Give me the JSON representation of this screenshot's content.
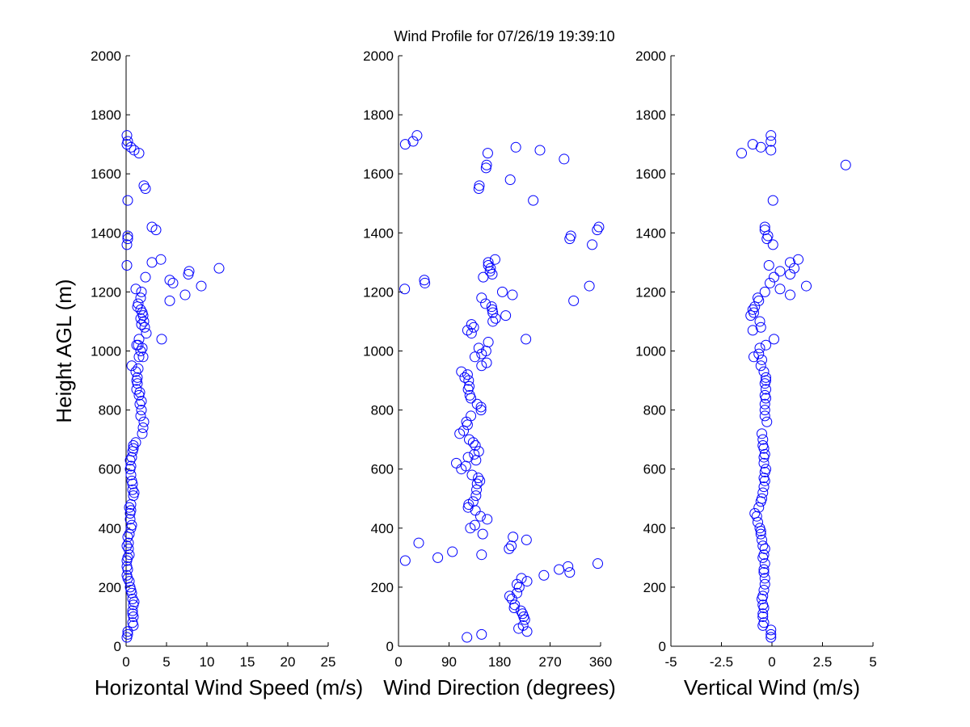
{
  "title": "Wind Profile for  07/26/19 19:39:10",
  "marker_color": "#0000ff",
  "chart_data": [
    {
      "type": "scatter",
      "xlabel": "Horizontal Wind Speed (m/s)",
      "ylabel": "Height AGL (m)",
      "xlim": [
        0,
        25
      ],
      "ylim": [
        0,
        2000
      ],
      "xticks": [
        0,
        5,
        10,
        15,
        20,
        25
      ],
      "xtick_labels": [
        "0",
        "5",
        "10",
        "15",
        "20",
        "25"
      ],
      "yticks": [
        0,
        200,
        400,
        600,
        800,
        1000,
        1200,
        1400,
        1600,
        1800,
        2000
      ],
      "ytick_labels": [
        "0",
        "200",
        "400",
        "600",
        "800",
        "1000",
        "1200",
        "1400",
        "1600",
        "1800",
        "2000"
      ],
      "grid": false,
      "points": [
        [
          0.1,
          30
        ],
        [
          0.2,
          40
        ],
        [
          0.2,
          50
        ],
        [
          0.9,
          70
        ],
        [
          0.8,
          80
        ],
        [
          0.9,
          100
        ],
        [
          0.8,
          110
        ],
        [
          0.8,
          120
        ],
        [
          0.9,
          140
        ],
        [
          1.0,
          150
        ],
        [
          0.8,
          160
        ],
        [
          0.7,
          180
        ],
        [
          0.6,
          190
        ],
        [
          0.5,
          200
        ],
        [
          0.4,
          220
        ],
        [
          0.2,
          230
        ],
        [
          0.1,
          240
        ],
        [
          0.2,
          260
        ],
        [
          0.1,
          270
        ],
        [
          0.1,
          290
        ],
        [
          0.2,
          300
        ],
        [
          0.4,
          310
        ],
        [
          0.3,
          330
        ],
        [
          0.1,
          340
        ],
        [
          0.3,
          350
        ],
        [
          0.2,
          370
        ],
        [
          0.4,
          380
        ],
        [
          0.6,
          400
        ],
        [
          0.7,
          410
        ],
        [
          0.5,
          430
        ],
        [
          0.5,
          450
        ],
        [
          0.6,
          460
        ],
        [
          0.4,
          470
        ],
        [
          0.6,
          480
        ],
        [
          0.9,
          510
        ],
        [
          1.0,
          520
        ],
        [
          0.8,
          530
        ],
        [
          0.8,
          550
        ],
        [
          0.7,
          560
        ],
        [
          0.6,
          580
        ],
        [
          0.5,
          600
        ],
        [
          0.6,
          610
        ],
        [
          0.5,
          630
        ],
        [
          0.7,
          640
        ],
        [
          0.8,
          660
        ],
        [
          0.9,
          670
        ],
        [
          0.9,
          680
        ],
        [
          1.2,
          690
        ],
        [
          2.0,
          720
        ],
        [
          2.1,
          740
        ],
        [
          2.2,
          760
        ],
        [
          1.8,
          780
        ],
        [
          1.9,
          800
        ],
        [
          1.7,
          820
        ],
        [
          1.9,
          830
        ],
        [
          1.6,
          850
        ],
        [
          1.7,
          860
        ],
        [
          1.3,
          870
        ],
        [
          1.4,
          890
        ],
        [
          1.3,
          900
        ],
        [
          1.4,
          910
        ],
        [
          1.2,
          930
        ],
        [
          1.5,
          940
        ],
        [
          0.7,
          950
        ],
        [
          1.6,
          980
        ],
        [
          2.1,
          980
        ],
        [
          1.8,
          1000
        ],
        [
          2.0,
          1010
        ],
        [
          1.5,
          1020
        ],
        [
          1.3,
          1020
        ],
        [
          1.6,
          1040
        ],
        [
          2.5,
          1060
        ],
        [
          2.3,
          1080
        ],
        [
          1.9,
          1090
        ],
        [
          2.2,
          1100
        ],
        [
          1.8,
          1110
        ],
        [
          2.1,
          1120
        ],
        [
          2.0,
          1130
        ],
        [
          1.8,
          1140
        ],
        [
          1.4,
          1150
        ],
        [
          1.5,
          1160
        ],
        [
          5.4,
          1170
        ],
        [
          1.8,
          1180
        ],
        [
          7.3,
          1190
        ],
        [
          1.9,
          1200
        ],
        [
          1.2,
          1210
        ],
        [
          9.3,
          1220
        ],
        [
          5.8,
          1230
        ],
        [
          5.4,
          1240
        ],
        [
          2.4,
          1250
        ],
        [
          7.7,
          1260
        ],
        [
          7.8,
          1270
        ],
        [
          11.5,
          1280
        ],
        [
          3.2,
          1300
        ],
        [
          4.3,
          1310
        ],
        [
          0.1,
          1290
        ],
        [
          0.1,
          1360
        ],
        [
          0.2,
          1380
        ],
        [
          0.2,
          1390
        ],
        [
          3.7,
          1410
        ],
        [
          3.2,
          1420
        ],
        [
          4.4,
          1040
        ],
        [
          0.2,
          1510
        ],
        [
          2.4,
          1550
        ],
        [
          2.2,
          1560
        ],
        [
          1.6,
          1670
        ],
        [
          1.0,
          1680
        ],
        [
          0.6,
          1690
        ],
        [
          0.1,
          1700
        ],
        [
          0.2,
          1710
        ],
        [
          0.1,
          1730
        ]
      ]
    },
    {
      "type": "scatter",
      "xlabel": "Wind Direction (degrees)",
      "xlim": [
        0,
        360
      ],
      "ylim": [
        0,
        2000
      ],
      "xticks": [
        0,
        90,
        180,
        270,
        360
      ],
      "xtick_labels": [
        "0",
        "90",
        "180",
        "270",
        "360"
      ],
      "yticks": [
        0,
        200,
        400,
        600,
        800,
        1000,
        1200,
        1400,
        1600,
        1800,
        2000
      ],
      "ytick_labels": [
        "0",
        "200",
        "400",
        "600",
        "800",
        "1000",
        "1200",
        "1400",
        "1600",
        "1800",
        "2000"
      ],
      "grid": false,
      "points": [
        [
          122,
          30
        ],
        [
          148,
          40
        ],
        [
          229,
          50
        ],
        [
          214,
          60
        ],
        [
          222,
          70
        ],
        [
          225,
          90
        ],
        [
          223,
          100
        ],
        [
          221,
          110
        ],
        [
          218,
          120
        ],
        [
          206,
          130
        ],
        [
          207,
          140
        ],
        [
          202,
          160
        ],
        [
          198,
          170
        ],
        [
          211,
          180
        ],
        [
          215,
          200
        ],
        [
          211,
          210
        ],
        [
          219,
          230
        ],
        [
          229,
          220
        ],
        [
          259,
          240
        ],
        [
          286,
          260
        ],
        [
          302,
          270
        ],
        [
          305,
          250
        ],
        [
          355,
          280
        ],
        [
          12,
          290
        ],
        [
          70,
          300
        ],
        [
          96,
          320
        ],
        [
          197,
          330
        ],
        [
          201,
          340
        ],
        [
          148,
          310
        ],
        [
          36,
          350
        ],
        [
          204,
          370
        ],
        [
          228,
          360
        ],
        [
          150,
          380
        ],
        [
          128,
          400
        ],
        [
          136,
          410
        ],
        [
          158,
          430
        ],
        [
          146,
          440
        ],
        [
          137,
          460
        ],
        [
          124,
          470
        ],
        [
          125,
          480
        ],
        [
          133,
          490
        ],
        [
          138,
          510
        ],
        [
          139,
          530
        ],
        [
          140,
          550
        ],
        [
          145,
          560
        ],
        [
          142,
          570
        ],
        [
          131,
          580
        ],
        [
          112,
          600
        ],
        [
          120,
          610
        ],
        [
          103,
          620
        ],
        [
          138,
          630
        ],
        [
          124,
          640
        ],
        [
          135,
          650
        ],
        [
          143,
          660
        ],
        [
          137,
          680
        ],
        [
          133,
          690
        ],
        [
          126,
          700
        ],
        [
          109,
          720
        ],
        [
          116,
          730
        ],
        [
          123,
          750
        ],
        [
          121,
          760
        ],
        [
          129,
          780
        ],
        [
          147,
          800
        ],
        [
          147,
          810
        ],
        [
          140,
          820
        ],
        [
          129,
          840
        ],
        [
          127,
          850
        ],
        [
          124,
          870
        ],
        [
          126,
          880
        ],
        [
          125,
          900
        ],
        [
          118,
          910
        ],
        [
          123,
          920
        ],
        [
          112,
          930
        ],
        [
          148,
          950
        ],
        [
          157,
          960
        ],
        [
          136,
          980
        ],
        [
          148,
          990
        ],
        [
          156,
          1000
        ],
        [
          143,
          1010
        ],
        [
          160,
          1030
        ],
        [
          227,
          1040
        ],
        [
          130,
          1060
        ],
        [
          123,
          1070
        ],
        [
          134,
          1080
        ],
        [
          130,
          1090
        ],
        [
          168,
          1100
        ],
        [
          173,
          1110
        ],
        [
          168,
          1130
        ],
        [
          191,
          1120
        ],
        [
          167,
          1140
        ],
        [
          166,
          1150
        ],
        [
          155,
          1160
        ],
        [
          312,
          1170
        ],
        [
          148,
          1180
        ],
        [
          203,
          1190
        ],
        [
          185,
          1200
        ],
        [
          11,
          1210
        ],
        [
          47,
          1230
        ],
        [
          46,
          1240
        ],
        [
          340,
          1220
        ],
        [
          151,
          1250
        ],
        [
          167,
          1260
        ],
        [
          163,
          1270
        ],
        [
          164,
          1280
        ],
        [
          160,
          1290
        ],
        [
          172,
          1310
        ],
        [
          160,
          1300
        ],
        [
          345,
          1360
        ],
        [
          305,
          1380
        ],
        [
          307,
          1390
        ],
        [
          354,
          1410
        ],
        [
          357,
          1420
        ],
        [
          240,
          1510
        ],
        [
          143,
          1550
        ],
        [
          144,
          1560
        ],
        [
          199,
          1580
        ],
        [
          156,
          1620
        ],
        [
          157,
          1630
        ],
        [
          295,
          1650
        ],
        [
          159,
          1670
        ],
        [
          252,
          1680
        ],
        [
          209,
          1690
        ],
        [
          12,
          1700
        ],
        [
          26,
          1710
        ],
        [
          33,
          1730
        ]
      ]
    },
    {
      "type": "scatter",
      "xlabel": "Vertical Wind (m/s)",
      "xlim": [
        -5,
        5
      ],
      "ylim": [
        0,
        2000
      ],
      "xticks": [
        -5,
        -2.5,
        0,
        2.5,
        5
      ],
      "xtick_labels": [
        "-5",
        "-2.5",
        "0",
        "2.5",
        "5"
      ],
      "yticks": [
        0,
        200,
        400,
        600,
        800,
        1000,
        1200,
        1400,
        1600,
        1800,
        2000
      ],
      "ytick_labels": [
        "0",
        "200",
        "400",
        "600",
        "800",
        "1000",
        "1200",
        "1400",
        "1600",
        "1800",
        "2000"
      ],
      "grid": false,
      "points": [
        [
          -0.05,
          30
        ],
        [
          -0.05,
          40
        ],
        [
          -0.05,
          55
        ],
        [
          -0.45,
          70
        ],
        [
          -0.4,
          80
        ],
        [
          -0.45,
          100
        ],
        [
          -0.45,
          110
        ],
        [
          -0.4,
          130
        ],
        [
          -0.45,
          140
        ],
        [
          -0.5,
          160
        ],
        [
          -0.45,
          170
        ],
        [
          -0.4,
          190
        ],
        [
          -0.35,
          210
        ],
        [
          -0.35,
          230
        ],
        [
          -0.4,
          250
        ],
        [
          -0.4,
          260
        ],
        [
          -0.35,
          280
        ],
        [
          -0.45,
          300
        ],
        [
          -0.4,
          310
        ],
        [
          -0.35,
          330
        ],
        [
          -0.45,
          340
        ],
        [
          -0.5,
          360
        ],
        [
          -0.55,
          380
        ],
        [
          -0.55,
          390
        ],
        [
          -0.6,
          400
        ],
        [
          -0.7,
          420
        ],
        [
          -0.75,
          440
        ],
        [
          -0.85,
          450
        ],
        [
          -0.65,
          470
        ],
        [
          -0.55,
          490
        ],
        [
          -0.5,
          500
        ],
        [
          -0.45,
          520
        ],
        [
          -0.4,
          540
        ],
        [
          -0.35,
          560
        ],
        [
          -0.4,
          570
        ],
        [
          -0.35,
          590
        ],
        [
          -0.3,
          600
        ],
        [
          -0.4,
          620
        ],
        [
          -0.4,
          640
        ],
        [
          -0.35,
          650
        ],
        [
          -0.4,
          670
        ],
        [
          -0.45,
          680
        ],
        [
          -0.45,
          700
        ],
        [
          -0.5,
          720
        ],
        [
          -0.25,
          760
        ],
        [
          -0.35,
          780
        ],
        [
          -0.35,
          800
        ],
        [
          -0.35,
          820
        ],
        [
          -0.3,
          840
        ],
        [
          -0.35,
          850
        ],
        [
          -0.3,
          870
        ],
        [
          -0.35,
          890
        ],
        [
          -0.3,
          900
        ],
        [
          -0.3,
          910
        ],
        [
          -0.4,
          930
        ],
        [
          -0.55,
          950
        ],
        [
          -0.5,
          970
        ],
        [
          -0.9,
          980
        ],
        [
          -0.65,
          990
        ],
        [
          -0.6,
          1010
        ],
        [
          -0.3,
          1020
        ],
        [
          0.1,
          1040
        ],
        [
          -0.95,
          1070
        ],
        [
          -0.55,
          1080
        ],
        [
          -0.6,
          1100
        ],
        [
          -1.05,
          1120
        ],
        [
          -0.9,
          1130
        ],
        [
          -0.95,
          1140
        ],
        [
          -0.85,
          1150
        ],
        [
          -0.65,
          1170
        ],
        [
          -0.7,
          1180
        ],
        [
          0.4,
          1210
        ],
        [
          0.9,
          1190
        ],
        [
          -0.35,
          1200
        ],
        [
          1.7,
          1220
        ],
        [
          -0.1,
          1230
        ],
        [
          0.1,
          1250
        ],
        [
          0.4,
          1270
        ],
        [
          0.9,
          1260
        ],
        [
          1.1,
          1280
        ],
        [
          -0.15,
          1290
        ],
        [
          0.9,
          1300
        ],
        [
          1.3,
          1310
        ],
        [
          0.05,
          1360
        ],
        [
          -0.25,
          1380
        ],
        [
          -0.2,
          1390
        ],
        [
          -0.35,
          1410
        ],
        [
          -0.35,
          1420
        ],
        [
          0.05,
          1510
        ],
        [
          3.65,
          1630
        ],
        [
          -1.5,
          1670
        ],
        [
          -0.05,
          1680
        ],
        [
          -0.55,
          1690
        ],
        [
          -0.95,
          1700
        ],
        [
          -0.05,
          1710
        ],
        [
          -0.05,
          1730
        ]
      ]
    }
  ]
}
